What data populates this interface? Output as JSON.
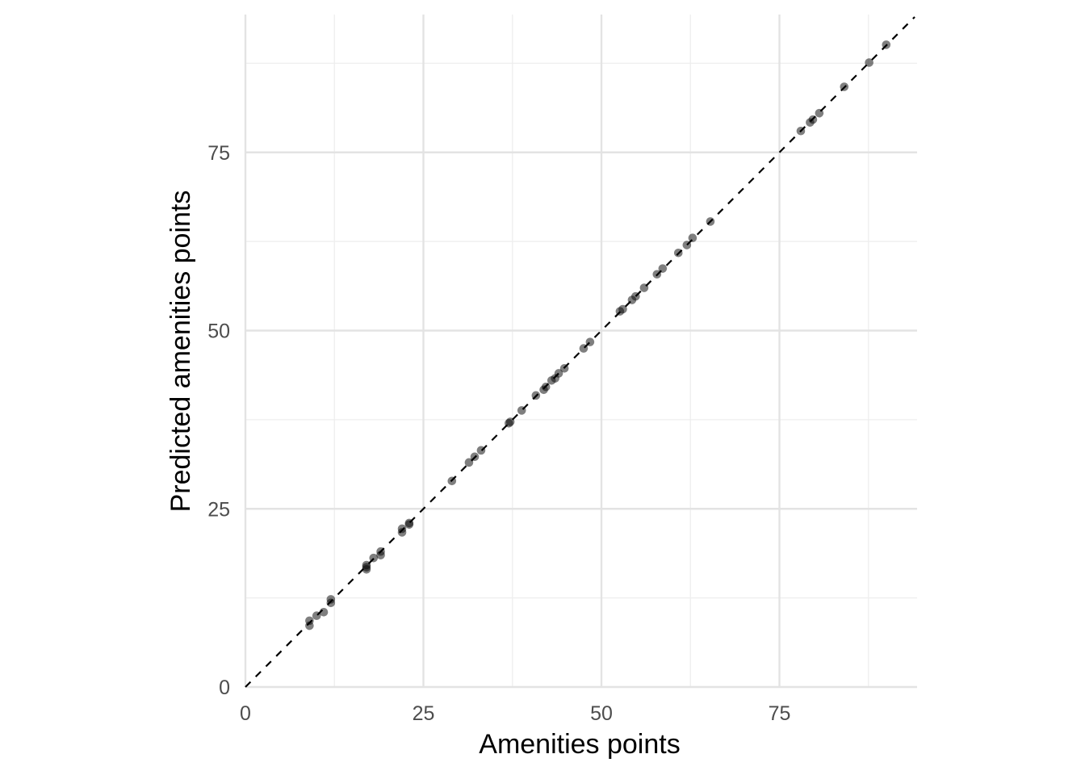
{
  "chart_data": {
    "type": "scatter",
    "title": "",
    "xlabel": "Amenities points",
    "ylabel": "Predicted amenities points",
    "xlim": [
      0,
      94
    ],
    "ylim": [
      0,
      94
    ],
    "x_ticks": [
      0,
      25,
      50,
      75
    ],
    "y_ticks": [
      0,
      25,
      50,
      75
    ],
    "x_tick_labels": [
      "0",
      "25",
      "50",
      "75"
    ],
    "y_tick_labels": [
      "0",
      "25",
      "50",
      "75"
    ],
    "grid": true,
    "legend": "none",
    "reference_line": {
      "slope": 1,
      "intercept": 0,
      "style": "dashed",
      "color": "#000000"
    },
    "point_color": "#000000",
    "point_opacity": 0.5,
    "points": [
      {
        "x": 9.0,
        "y": 8.6
      },
      {
        "x": 9.0,
        "y": 9.3
      },
      {
        "x": 10.0,
        "y": 10.0
      },
      {
        "x": 11.0,
        "y": 10.5
      },
      {
        "x": 12.0,
        "y": 11.8
      },
      {
        "x": 12.0,
        "y": 12.3
      },
      {
        "x": 17.0,
        "y": 16.5
      },
      {
        "x": 17.0,
        "y": 16.8
      },
      {
        "x": 17.0,
        "y": 17.1
      },
      {
        "x": 18.0,
        "y": 18.1
      },
      {
        "x": 19.0,
        "y": 18.5
      },
      {
        "x": 19.0,
        "y": 19.0
      },
      {
        "x": 22.0,
        "y": 21.7
      },
      {
        "x": 22.0,
        "y": 22.2
      },
      {
        "x": 23.0,
        "y": 22.8
      },
      {
        "x": 23.0,
        "y": 23.0
      },
      {
        "x": 29.0,
        "y": 28.9
      },
      {
        "x": 31.4,
        "y": 31.5
      },
      {
        "x": 32.2,
        "y": 32.3
      },
      {
        "x": 33.1,
        "y": 33.2
      },
      {
        "x": 37.0,
        "y": 37.0
      },
      {
        "x": 37.2,
        "y": 37.2
      },
      {
        "x": 38.8,
        "y": 38.8
      },
      {
        "x": 40.8,
        "y": 40.9
      },
      {
        "x": 41.9,
        "y": 41.7
      },
      {
        "x": 42.2,
        "y": 42.1
      },
      {
        "x": 43.0,
        "y": 43.0
      },
      {
        "x": 43.5,
        "y": 43.3
      },
      {
        "x": 44.0,
        "y": 44.0
      },
      {
        "x": 44.8,
        "y": 44.7
      },
      {
        "x": 47.5,
        "y": 47.5
      },
      {
        "x": 48.4,
        "y": 48.4
      },
      {
        "x": 52.6,
        "y": 52.7
      },
      {
        "x": 53.0,
        "y": 53.0
      },
      {
        "x": 54.3,
        "y": 54.3
      },
      {
        "x": 54.8,
        "y": 54.8
      },
      {
        "x": 56.0,
        "y": 56.0
      },
      {
        "x": 57.8,
        "y": 57.9
      },
      {
        "x": 58.6,
        "y": 58.7
      },
      {
        "x": 60.8,
        "y": 60.9
      },
      {
        "x": 62.0,
        "y": 62.0
      },
      {
        "x": 62.8,
        "y": 63.0
      },
      {
        "x": 65.3,
        "y": 65.3
      },
      {
        "x": 78.0,
        "y": 78.0
      },
      {
        "x": 79.3,
        "y": 79.2
      },
      {
        "x": 79.7,
        "y": 79.6
      },
      {
        "x": 80.6,
        "y": 80.5
      },
      {
        "x": 84.1,
        "y": 84.2
      },
      {
        "x": 87.6,
        "y": 87.6
      },
      {
        "x": 90.0,
        "y": 90.1
      }
    ]
  }
}
